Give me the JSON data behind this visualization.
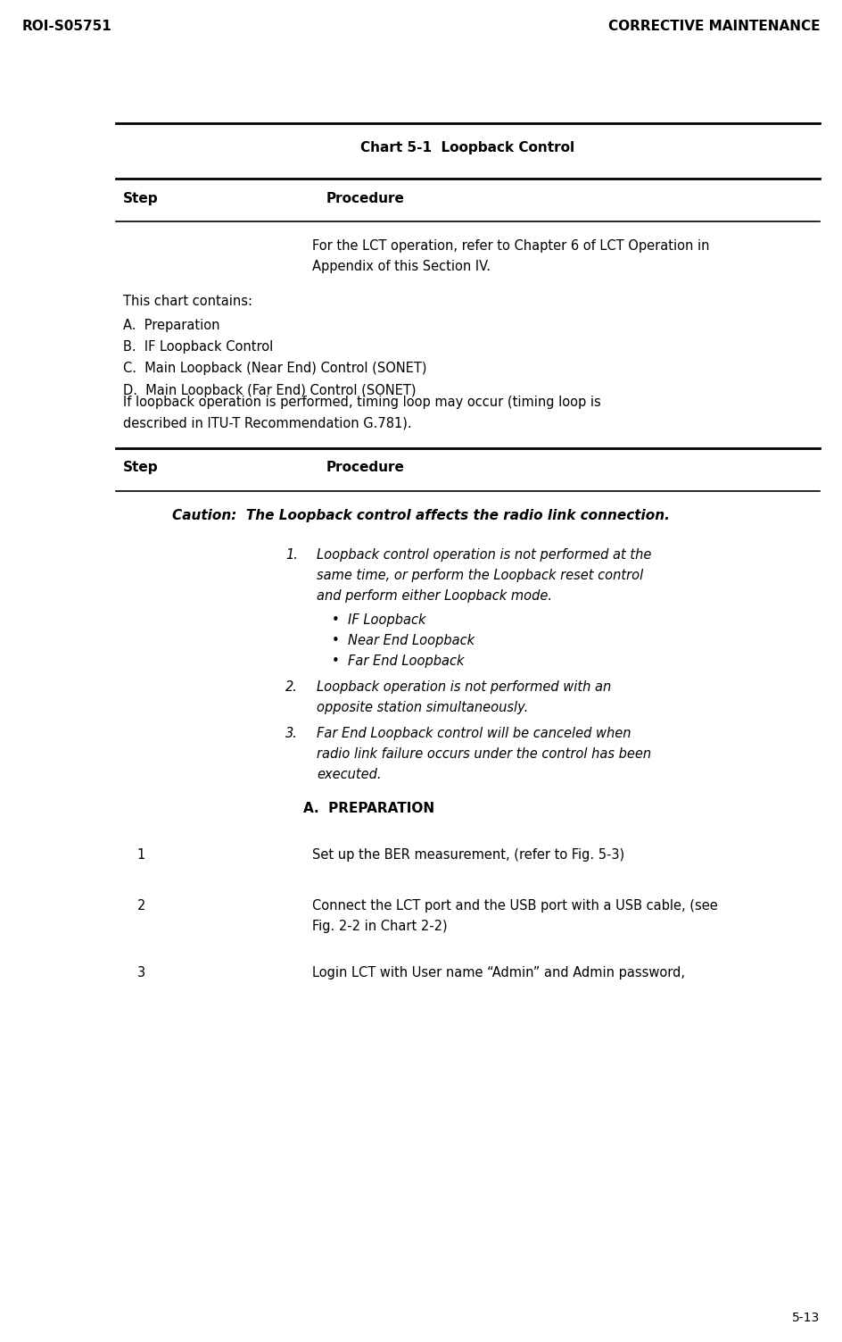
{
  "page_width": 9.44,
  "page_height": 15.03,
  "bg_color": "#ffffff",
  "header_left": "ROI-S05751",
  "header_right": "CORRECTIVE MAINTENANCE",
  "footer_right": "5-13",
  "chart_title": "Chart 5-1  Loopback Control",
  "step_label": "Step",
  "procedure_label": "Procedure",
  "intro_line1": "For the LCT operation, refer to Chapter 6 of LCT Operation in",
  "intro_line2": "Appendix of this Section IV.",
  "chart_contains_header": "This chart contains:",
  "chart_items": [
    "A.  Preparation",
    "B.  IF Loopback Control",
    "C.  Main Loopback (Near End) Control (SONET)",
    "D.  Main Loopback (Far End) Control (SONET)"
  ],
  "timing_line1": "If loopback operation is performed, timing loop may occur (timing loop is",
  "timing_line2": "described in ITU-T Recommendation G.781).",
  "caution_text": "Caution:  The Loopback control affects the radio link connection.",
  "num1_line1": "Loopback control operation is not performed at the",
  "num1_line2": "same time, or perform the Loopback reset control",
  "num1_line3": "and perform either Loopback mode.",
  "bullets": [
    "IF Loopback",
    "Near End Loopback",
    "Far End Loopback"
  ],
  "num2_line1": "Loopback operation is not performed with an",
  "num2_line2": "opposite station simultaneously.",
  "num3_line1": "Far End Loopback control will be canceled when",
  "num3_line2": "radio link failure occurs under the control has been",
  "num3_line3": "executed.",
  "section_a_title": "A.  PREPARATION",
  "prep1_num": "1",
  "prep1_text": "Set up the BER measurement, (refer to Fig. 5-3)",
  "prep2_num": "2",
  "prep2_line1": "Connect the LCT port and the USB port with a USB cable, (see",
  "prep2_line2": "Fig. 2-2 in Chart 2-2)",
  "prep3_num": "3",
  "prep3_text": "Login LCT with User name “Admin” and Admin password,"
}
